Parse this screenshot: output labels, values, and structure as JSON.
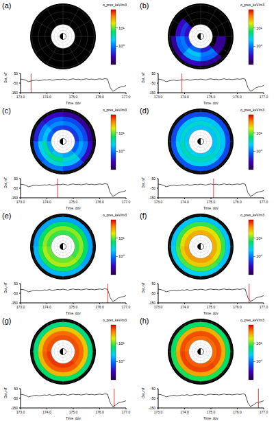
{
  "chart_data": {
    "type": "polar_heatmap_with_line",
    "colorbar": {
      "label": "o_pres_keV/m3",
      "range": [
        0.1,
        100
      ],
      "ticks": [
        {
          "value": 1,
          "label": "10⁰"
        },
        {
          "value": 10,
          "label": "10¹"
        }
      ],
      "log": true
    },
    "dst": {
      "type": "line",
      "xlabel": "Time, doy",
      "ylabel": "Dst, nT",
      "color": "#000000",
      "x": [
        173.0,
        173.1,
        173.2,
        173.3,
        173.4,
        173.5,
        173.6,
        173.7,
        173.8,
        173.9,
        174.0,
        174.1,
        174.2,
        174.3,
        174.4,
        174.5,
        174.6,
        174.7,
        174.8,
        174.9,
        175.0,
        175.1,
        175.2,
        175.3,
        175.4,
        175.5,
        175.6,
        175.7,
        175.8,
        175.9,
        176.0,
        176.1,
        176.2,
        176.3,
        176.4,
        176.5,
        176.6,
        176.7,
        176.8,
        176.9,
        177.0
      ],
      "values": [
        -8,
        -12,
        -20,
        -35,
        -28,
        -22,
        -18,
        -25,
        -20,
        -15,
        -18,
        -12,
        -20,
        -16,
        -10,
        -14,
        -8,
        -12,
        -18,
        -10,
        -6,
        -12,
        -9,
        -15,
        -10,
        -5,
        -12,
        -8,
        -14,
        -10,
        -6,
        -10,
        -4,
        -8,
        -95,
        -135,
        -120,
        -100,
        -90,
        -85,
        -75
      ],
      "xlim": [
        173.0,
        177.0
      ],
      "xticks": [
        {
          "value": 173,
          "label": "173.0"
        },
        {
          "value": 174,
          "label": "174.0"
        },
        {
          "value": 175,
          "label": "175.0"
        },
        {
          "value": 176,
          "label": "176.0"
        },
        {
          "value": 177,
          "label": "177.0"
        }
      ],
      "ylim": [
        -150,
        50
      ],
      "yticks": [
        -150,
        -50,
        50
      ]
    },
    "panels": [
      {
        "label": "(a)",
        "time": 173.4,
        "pressure": [
          [
            null,
            null,
            null,
            null,
            null,
            null,
            null,
            null
          ],
          [
            null,
            null,
            null,
            null,
            null,
            null,
            null,
            null
          ],
          [
            null,
            null,
            null,
            null,
            null,
            null,
            null,
            null
          ],
          [
            null,
            null,
            null,
            null,
            null,
            null,
            null,
            null
          ]
        ]
      },
      {
        "label": "(b)",
        "time": 173.9,
        "pressure": [
          [
            null,
            null,
            null,
            0.3,
            0.5,
            0.8,
            0.4,
            null
          ],
          [
            null,
            null,
            null,
            0.5,
            1,
            2,
            1,
            0.2
          ],
          [
            null,
            null,
            null,
            0.3,
            0.8,
            1.5,
            0.8,
            0.2
          ],
          [
            null,
            null,
            null,
            null,
            0.2,
            0.3,
            0.2,
            null
          ]
        ]
      },
      {
        "label": "(c)",
        "time": 174.4,
        "pressure": [
          [
            0.5,
            0.5,
            0.6,
            0.8,
            1.5,
            2,
            1.5,
            0.8
          ],
          [
            1,
            1,
            1.2,
            2,
            4,
            5,
            3,
            1.5
          ],
          [
            0.6,
            0.6,
            0.8,
            1.2,
            2.5,
            3,
            2,
            1
          ],
          [
            0.2,
            0.2,
            0.3,
            0.4,
            0.8,
            1,
            0.6,
            0.3
          ]
        ]
      },
      {
        "label": "(d)",
        "time": 175.1,
        "pressure": [
          [
            2,
            2,
            2,
            2,
            2.5,
            2.5,
            2.5,
            2
          ],
          [
            3,
            3,
            3,
            3,
            3.5,
            3.5,
            3.5,
            3
          ],
          [
            2,
            2,
            2,
            2,
            2.5,
            2.5,
            2.5,
            2
          ],
          [
            0.6,
            0.6,
            0.6,
            0.6,
            0.7,
            0.7,
            0.7,
            0.6
          ]
        ]
      },
      {
        "label": "(e)",
        "time": 176.3,
        "pressure": [
          [
            8,
            8,
            8,
            8,
            10,
            10,
            10,
            8
          ],
          [
            12,
            12,
            12,
            12,
            14,
            14,
            14,
            12
          ],
          [
            6,
            6,
            6,
            6,
            7,
            7,
            7,
            6
          ],
          [
            1.5,
            1.5,
            1.5,
            1.5,
            1.8,
            1.8,
            1.8,
            1.5
          ]
        ]
      },
      {
        "label": "(f)",
        "time": 176.45,
        "pressure": [
          [
            30,
            30,
            30,
            30,
            35,
            35,
            35,
            30
          ],
          [
            20,
            20,
            20,
            20,
            24,
            24,
            24,
            20
          ],
          [
            8,
            8,
            8,
            8,
            9,
            9,
            9,
            8
          ],
          [
            2,
            2,
            2,
            2,
            2.4,
            2.4,
            2.4,
            2
          ]
        ]
      },
      {
        "label": "(g)",
        "time": 176.55,
        "pressure": [
          [
            60,
            60,
            60,
            60,
            70,
            70,
            70,
            60
          ],
          [
            50,
            50,
            50,
            50,
            55,
            55,
            55,
            50
          ],
          [
            25,
            25,
            25,
            25,
            28,
            28,
            28,
            25
          ],
          [
            5,
            5,
            5,
            5,
            6,
            6,
            6,
            5
          ]
        ]
      },
      {
        "label": "(h)",
        "time": 176.8,
        "pressure": [
          [
            50,
            50,
            50,
            50,
            55,
            55,
            55,
            50
          ],
          [
            60,
            60,
            60,
            60,
            65,
            65,
            65,
            60
          ],
          [
            30,
            30,
            30,
            30,
            33,
            33,
            33,
            30
          ],
          [
            6,
            6,
            6,
            6,
            7,
            7,
            7,
            6
          ]
        ]
      }
    ]
  }
}
